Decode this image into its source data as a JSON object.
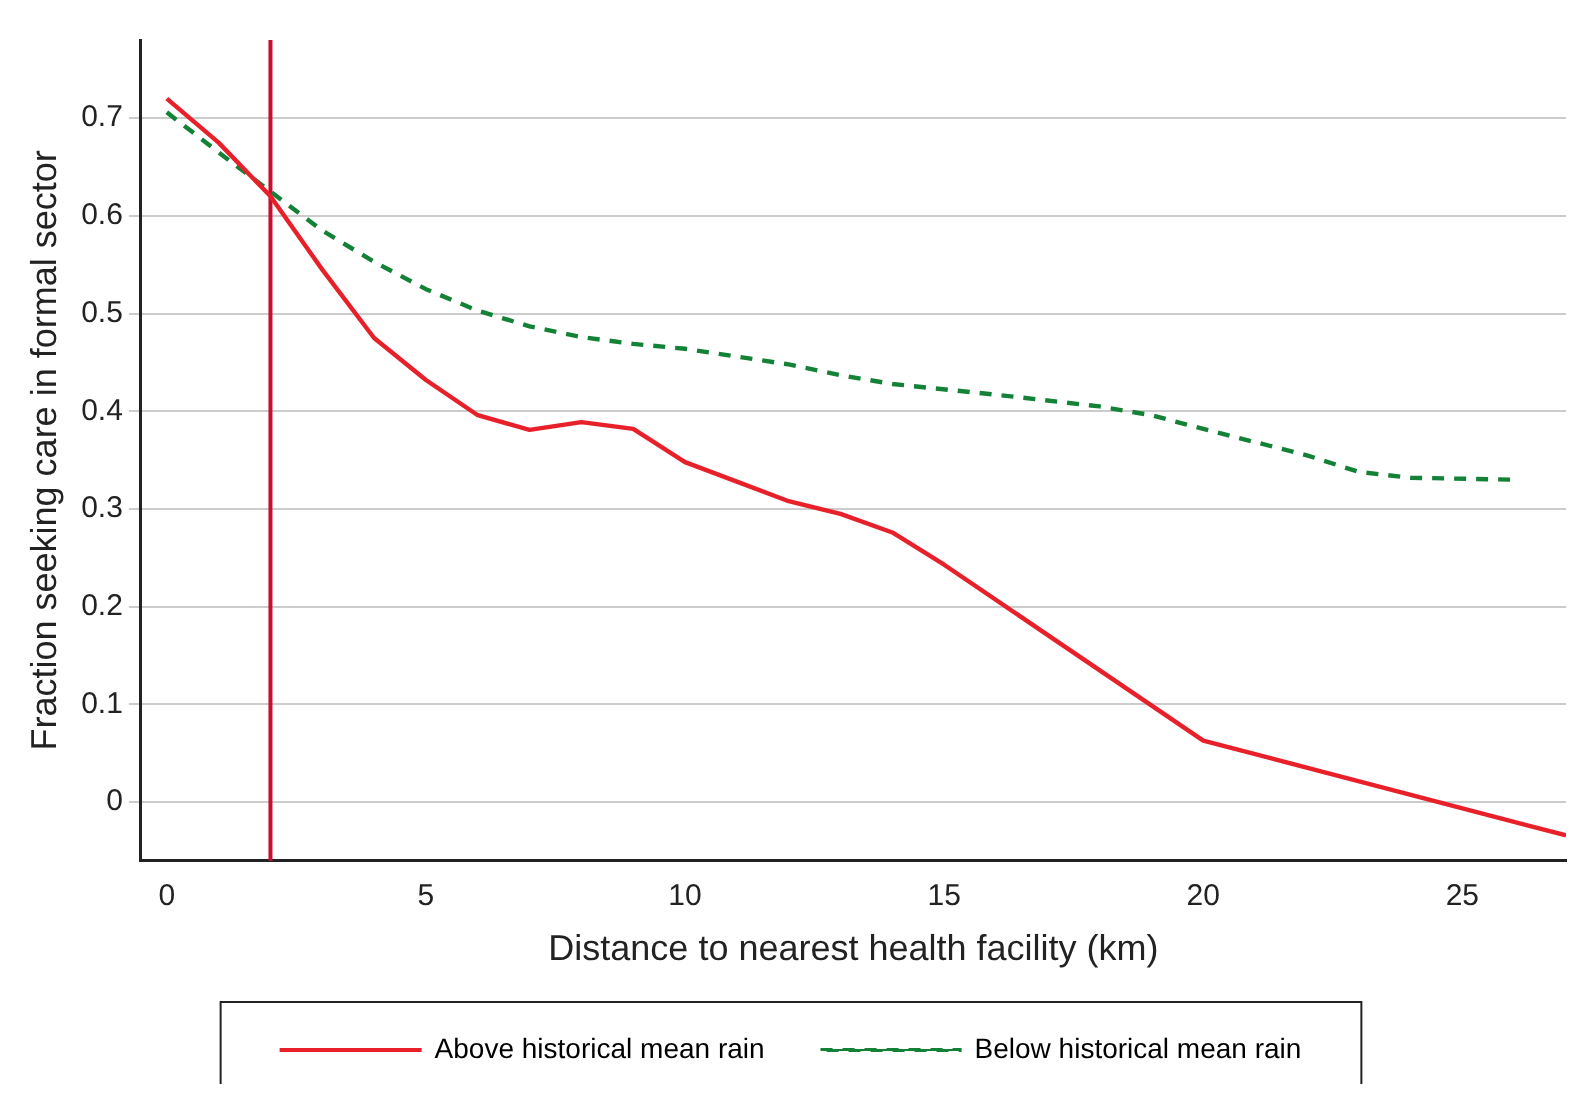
{
  "chart_data": {
    "type": "line",
    "xlabel": "Distance to nearest health facility (km)",
    "ylabel": "Fraction seeking care in formal sector",
    "xlim": [
      -0.5,
      27
    ],
    "xticks": [
      0,
      5,
      10,
      15,
      20,
      25
    ],
    "ylim": [
      -0.06,
      0.78
    ],
    "yticks": [
      0,
      0.1,
      0.2,
      0.3,
      0.4,
      0.5,
      0.6,
      0.7
    ],
    "grid": "y",
    "legend": "bottom",
    "marker": "none",
    "series": [
      {
        "name": "Above historical mean rain",
        "color": "#e8202a",
        "line_style": "solid",
        "x": [
          0,
          1,
          2,
          3,
          4,
          5,
          6,
          7,
          8,
          9,
          10,
          11,
          12,
          13,
          14,
          15,
          20,
          27
        ],
        "values": [
          0.72,
          0.675,
          0.62,
          0.545,
          0.475,
          0.432,
          0.396,
          0.381,
          0.389,
          0.382,
          0.348,
          0.328,
          0.308,
          0.295,
          0.276,
          0.243,
          0.063,
          -0.034
        ]
      },
      {
        "name": "Below historical mean rain",
        "color": "#138236",
        "line_style": "dashed",
        "x": [
          0,
          1,
          2,
          3,
          4,
          5,
          6,
          7,
          8,
          9,
          10,
          12,
          13,
          14,
          16,
          18,
          19,
          20,
          22,
          23,
          24,
          26
        ],
        "values": [
          0.706,
          0.665,
          0.625,
          0.585,
          0.553,
          0.525,
          0.503,
          0.487,
          0.476,
          0.469,
          0.464,
          0.448,
          0.437,
          0.428,
          0.417,
          0.405,
          0.396,
          0.382,
          0.355,
          0.338,
          0.332,
          0.33
        ]
      }
    ],
    "ref_lines": [
      {
        "axis": "x",
        "value": 2,
        "color": "#c8102e"
      }
    ]
  }
}
